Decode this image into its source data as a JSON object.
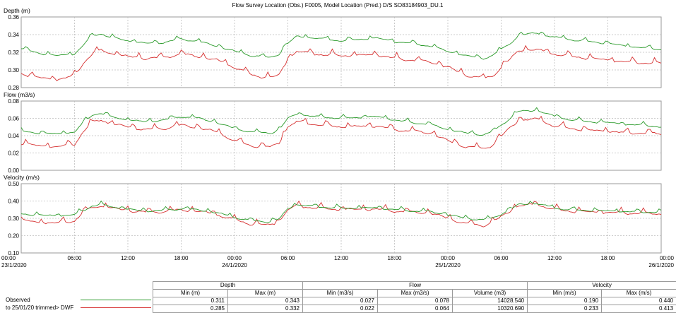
{
  "chart_data": {
    "type": "line",
    "title": "Flow Survey Location (Obs.) F0005, Model Location (Pred.) D/S SO83184903_DU.1",
    "x_ticks": [
      "00:00\n23/1/2020",
      "06:00",
      "12:00",
      "18:00",
      "00:00\n24/1/2020",
      "06:00",
      "12:00",
      "18:00",
      "00:00\n25/1/2020",
      "06:00",
      "12:00",
      "18:00",
      "00:00\n26/1/2020"
    ],
    "x_range_hours": [
      0,
      72
    ],
    "series_names": [
      "Observed",
      "to 25/01/20 trimmed> DWF"
    ],
    "series_colors": [
      "#2a9a2a",
      "#d63030"
    ],
    "panels": [
      {
        "ylabel": "Depth (m)",
        "ylim": [
          0.28,
          0.36
        ],
        "yticks": [
          "0.28",
          "0.30",
          "0.32",
          "0.34",
          "0.36"
        ],
        "series": [
          {
            "x": [
              0,
              2,
              4,
              6,
              7,
              8,
              9,
              10,
              12,
              14,
              16,
              18,
              20,
              22,
              24,
              26,
              28,
              29,
              30,
              31,
              33,
              36,
              40,
              42,
              44,
              46,
              48,
              50,
              52,
              53,
              55,
              56,
              58,
              59,
              60,
              62,
              64,
              66,
              68,
              70,
              72
            ],
            "values": [
              0.324,
              0.319,
              0.316,
              0.318,
              0.328,
              0.339,
              0.341,
              0.337,
              0.333,
              0.33,
              0.331,
              0.335,
              0.332,
              0.327,
              0.321,
              0.316,
              0.314,
              0.318,
              0.33,
              0.338,
              0.336,
              0.333,
              0.336,
              0.332,
              0.33,
              0.327,
              0.321,
              0.316,
              0.313,
              0.316,
              0.33,
              0.339,
              0.342,
              0.339,
              0.337,
              0.334,
              0.332,
              0.33,
              0.327,
              0.325,
              0.323
            ]
          },
          {
            "x": [
              0,
              2,
              4,
              6,
              7,
              8,
              9,
              10,
              12,
              14,
              16,
              18,
              20,
              22,
              24,
              26,
              28,
              29,
              30,
              31,
              33,
              36,
              40,
              42,
              44,
              46,
              48,
              50,
              52,
              53,
              55,
              56,
              58,
              59,
              60,
              62,
              64,
              66,
              68,
              70,
              72
            ],
            "values": [
              0.296,
              0.291,
              0.289,
              0.293,
              0.308,
              0.318,
              0.322,
              0.319,
              0.315,
              0.313,
              0.314,
              0.318,
              0.315,
              0.311,
              0.303,
              0.294,
              0.291,
              0.294,
              0.312,
              0.321,
              0.318,
              0.316,
              0.317,
              0.313,
              0.311,
              0.309,
              0.303,
              0.294,
              0.29,
              0.293,
              0.312,
              0.322,
              0.323,
              0.32,
              0.318,
              0.315,
              0.313,
              0.311,
              0.309,
              0.308,
              0.307
            ]
          }
        ]
      },
      {
        "ylabel": "Flow (m3/s)",
        "ylim": [
          0.0,
          0.08
        ],
        "yticks": [
          "0.00",
          "0.02",
          "0.04",
          "0.06",
          "0.08"
        ],
        "series": [
          {
            "x": [
              0,
              2,
              4,
              6,
              7,
              8,
              9,
              10,
              12,
              14,
              16,
              18,
              20,
              22,
              24,
              26,
              28,
              29,
              30,
              31,
              33,
              36,
              40,
              42,
              44,
              46,
              48,
              50,
              52,
              53,
              55,
              56,
              58,
              59,
              60,
              62,
              64,
              66,
              68,
              70,
              72
            ],
            "values": [
              0.045,
              0.043,
              0.042,
              0.044,
              0.055,
              0.064,
              0.066,
              0.062,
              0.058,
              0.056,
              0.058,
              0.062,
              0.06,
              0.055,
              0.048,
              0.044,
              0.043,
              0.046,
              0.06,
              0.065,
              0.062,
              0.06,
              0.062,
              0.058,
              0.055,
              0.053,
              0.047,
              0.043,
              0.041,
              0.044,
              0.06,
              0.068,
              0.069,
              0.066,
              0.062,
              0.058,
              0.056,
              0.055,
              0.053,
              0.052,
              0.05
            ]
          },
          {
            "x": [
              0,
              2,
              4,
              6,
              7,
              8,
              9,
              10,
              12,
              14,
              16,
              18,
              20,
              22,
              24,
              26,
              28,
              29,
              30,
              31,
              33,
              36,
              40,
              42,
              44,
              46,
              48,
              50,
              52,
              53,
              55,
              56,
              58,
              59,
              60,
              62,
              64,
              66,
              68,
              70,
              72
            ],
            "values": [
              0.031,
              0.028,
              0.027,
              0.03,
              0.045,
              0.055,
              0.058,
              0.054,
              0.05,
              0.047,
              0.048,
              0.052,
              0.049,
              0.044,
              0.034,
              0.028,
              0.027,
              0.031,
              0.05,
              0.056,
              0.053,
              0.05,
              0.051,
              0.047,
              0.045,
              0.043,
              0.034,
              0.027,
              0.025,
              0.029,
              0.049,
              0.058,
              0.059,
              0.055,
              0.051,
              0.048,
              0.046,
              0.045,
              0.043,
              0.043,
              0.042
            ]
          }
        ]
      },
      {
        "ylabel": "Velocity (m/s)",
        "ylim": [
          0.1,
          0.5
        ],
        "yticks": [
          "0.10",
          "0.20",
          "0.30",
          "0.40",
          "0.50"
        ],
        "series": [
          {
            "x": [
              0,
              2,
              4,
              6,
              7,
              8,
              9,
              10,
              12,
              14,
              16,
              18,
              20,
              22,
              24,
              26,
              28,
              29,
              30,
              31,
              33,
              36,
              40,
              42,
              44,
              46,
              48,
              50,
              52,
              53,
              55,
              56,
              58,
              59,
              60,
              62,
              64,
              66,
              68,
              70,
              72
            ],
            "values": [
              0.325,
              0.318,
              0.315,
              0.32,
              0.345,
              0.372,
              0.378,
              0.368,
              0.352,
              0.342,
              0.345,
              0.355,
              0.348,
              0.332,
              0.305,
              0.285,
              0.28,
              0.295,
              0.355,
              0.378,
              0.368,
              0.358,
              0.36,
              0.35,
              0.342,
              0.338,
              0.32,
              0.3,
              0.29,
              0.3,
              0.35,
              0.38,
              0.385,
              0.372,
              0.358,
              0.348,
              0.345,
              0.342,
              0.338,
              0.336,
              0.335
            ]
          },
          {
            "x": [
              0,
              2,
              4,
              6,
              7,
              8,
              9,
              10,
              12,
              14,
              16,
              18,
              20,
              22,
              24,
              26,
              28,
              29,
              30,
              31,
              33,
              36,
              40,
              42,
              44,
              46,
              48,
              50,
              52,
              53,
              55,
              56,
              58,
              59,
              60,
              62,
              64,
              66,
              68,
              70,
              72
            ],
            "values": [
              0.29,
              0.275,
              0.272,
              0.285,
              0.335,
              0.362,
              0.37,
              0.36,
              0.345,
              0.335,
              0.338,
              0.348,
              0.34,
              0.322,
              0.29,
              0.265,
              0.262,
              0.28,
              0.348,
              0.372,
              0.36,
              0.35,
              0.352,
              0.342,
              0.335,
              0.33,
              0.3,
              0.268,
              0.258,
              0.275,
              0.342,
              0.372,
              0.38,
              0.365,
              0.35,
              0.34,
              0.336,
              0.333,
              0.33,
              0.328,
              0.326
            ]
          }
        ]
      }
    ]
  },
  "legend": [
    {
      "label": "Observed",
      "color": "#2a9a2a"
    },
    {
      "label": "to 25/01/20 trimmed> DWF",
      "color": "#d63030"
    }
  ],
  "stats_table": {
    "groups": [
      "Depth",
      "Flow",
      "Velocity"
    ],
    "columns": [
      "Min (m)",
      "Max (m)",
      "Min (m3/s)",
      "Max (m3/s)",
      "Volume (m3)",
      "Min (m/s)",
      "Max (m/s)"
    ],
    "rows": [
      [
        "0.311",
        "0.343",
        "0.027",
        "0.078",
        "14028.540",
        "0.190",
        "0.440"
      ],
      [
        "0.285",
        "0.332",
        "0.022",
        "0.064",
        "10320.690",
        "0.233",
        "0.413"
      ]
    ]
  }
}
